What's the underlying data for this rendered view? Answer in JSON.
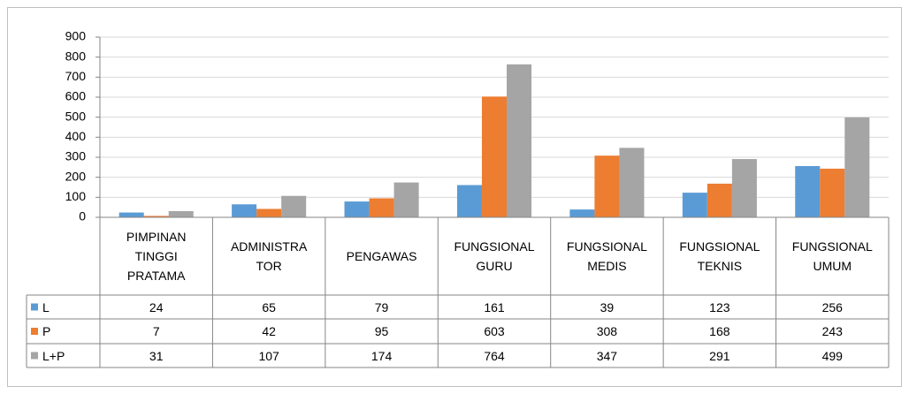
{
  "chart_data": {
    "type": "bar",
    "categories": [
      "PIMPINAN\nTINGGI\nPRATAMA",
      "ADMINISTRA\nTOR",
      "PENGAWAS",
      "FUNGSIONAL\nGURU",
      "FUNGSIONAL\nMEDIS",
      "FUNGSIONAL\nTEKNIS",
      "FUNGSIONAL\nUMUM"
    ],
    "series": [
      {
        "name": "L",
        "color": "#5b9bd5",
        "values": [
          24,
          65,
          79,
          161,
          39,
          123,
          256
        ]
      },
      {
        "name": "P",
        "color": "#ed7d31",
        "values": [
          7,
          42,
          95,
          603,
          308,
          168,
          243
        ]
      },
      {
        "name": "L+P",
        "color": "#a5a5a5",
        "values": [
          31,
          107,
          174,
          764,
          347,
          291,
          499
        ]
      }
    ],
    "ylim": [
      0,
      900
    ],
    "yticks": [
      0,
      100,
      200,
      300,
      400,
      500,
      600,
      700,
      800,
      900
    ],
    "grid": true
  }
}
